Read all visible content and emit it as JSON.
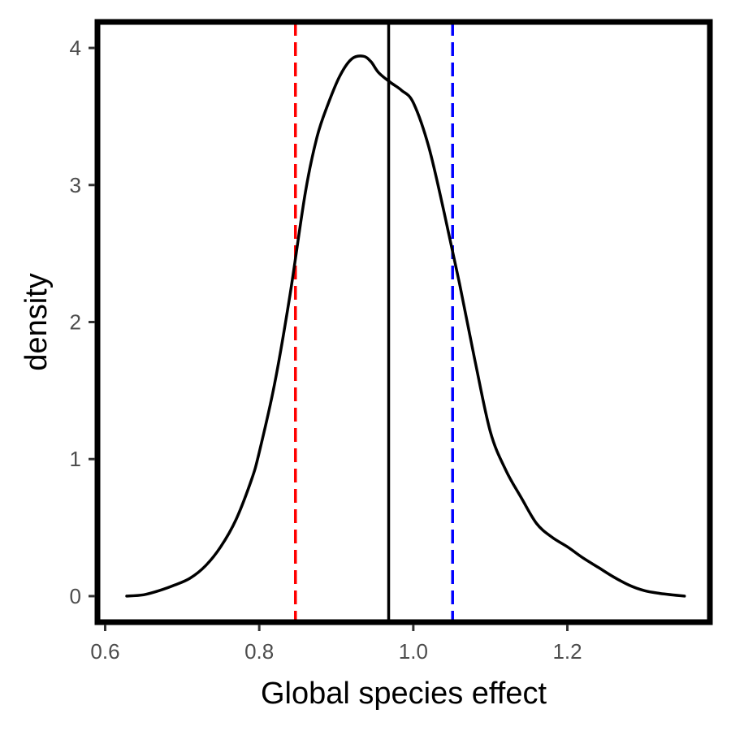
{
  "chart_data": {
    "type": "line",
    "title": "",
    "xlabel": "Global species effect",
    "ylabel": "density",
    "xlim": [
      0.59,
      1.385
    ],
    "ylim": [
      -0.19,
      4.19
    ],
    "xticks": [
      0.6,
      0.8,
      1.0,
      1.2
    ],
    "xtick_labels": [
      "0.6",
      "0.8",
      "1.0",
      "1.2"
    ],
    "yticks": [
      0,
      1,
      2,
      3,
      4
    ],
    "ytick_labels": [
      "0",
      "1",
      "2",
      "3",
      "4"
    ],
    "grid": false,
    "legend": "none",
    "series": [
      {
        "x": [
          0.628,
          0.65,
          0.67,
          0.69,
          0.71,
          0.73,
          0.75,
          0.77,
          0.79,
          0.8,
          0.82,
          0.84,
          0.86,
          0.875,
          0.89,
          0.905,
          0.92,
          0.935,
          0.945,
          0.955,
          0.97,
          0.985,
          1.0,
          1.02,
          1.04,
          1.06,
          1.08,
          1.1,
          1.12,
          1.14,
          1.16,
          1.18,
          1.2,
          1.22,
          1.24,
          1.26,
          1.28,
          1.3,
          1.32,
          1.352
        ],
        "y": [
          0.0,
          0.01,
          0.04,
          0.08,
          0.13,
          0.22,
          0.36,
          0.56,
          0.85,
          1.05,
          1.55,
          2.2,
          2.95,
          3.35,
          3.6,
          3.8,
          3.92,
          3.94,
          3.9,
          3.82,
          3.75,
          3.69,
          3.6,
          3.28,
          2.8,
          2.28,
          1.72,
          1.2,
          0.92,
          0.72,
          0.53,
          0.43,
          0.36,
          0.28,
          0.21,
          0.14,
          0.08,
          0.04,
          0.02,
          0.0
        ],
        "color": "#000000"
      }
    ],
    "reference_lines": [
      {
        "x": 0.847,
        "color": "#ff0000",
        "style": "dashed"
      },
      {
        "x": 0.968,
        "color": "#000000",
        "style": "solid"
      },
      {
        "x": 1.051,
        "color": "#0000ff",
        "style": "dashed"
      }
    ],
    "panel_border_color": "#000000"
  }
}
